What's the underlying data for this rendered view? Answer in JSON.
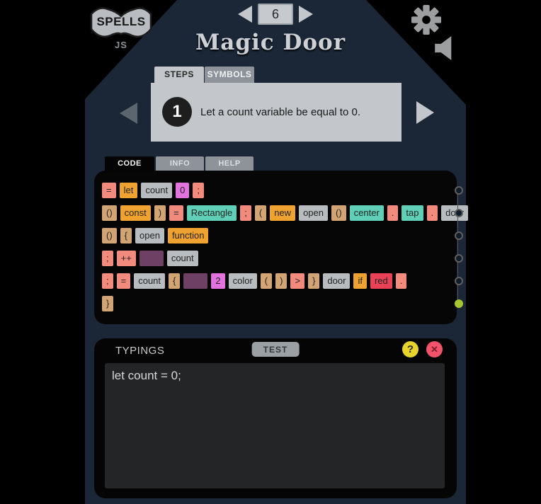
{
  "header": {
    "logo": {
      "title": "SPELLS",
      "subtitle": "JS"
    },
    "level_nav": {
      "number": "6"
    },
    "title": "Magic Door"
  },
  "steps": {
    "tabs": [
      {
        "label": "STEPS",
        "active": true
      },
      {
        "label": "SYMBOLS",
        "active": false
      }
    ],
    "current_step": {
      "number": "1",
      "text": "Let a count variable be equal to 0."
    }
  },
  "code_section": {
    "tabs": [
      {
        "label": "CODE",
        "active": true
      },
      {
        "label": "INFO",
        "active": false
      },
      {
        "label": "HELP",
        "active": false
      }
    ]
  },
  "code_panel": {
    "token_colors": {
      "salmon": "#f28a7d",
      "orange": "#efa22f",
      "gray": "#b9bcbe",
      "orchid": "#e273de",
      "tan": "#d2a473",
      "teal": "#5fd0b7",
      "purple": "#6e4063",
      "red": "#e94257"
    },
    "rows": [
      [
        {
          "text": "=",
          "type": "salmon"
        },
        {
          "text": "let",
          "type": "orange"
        },
        {
          "text": "count",
          "type": "gray"
        },
        {
          "text": "0",
          "type": "orchid"
        },
        {
          "text": ";",
          "type": "salmon"
        }
      ],
      [
        {
          "text": "()",
          "type": "tan"
        },
        {
          "text": "const",
          "type": "orange"
        },
        {
          "text": ")",
          "type": "tan"
        },
        {
          "text": "=",
          "type": "salmon"
        },
        {
          "text": "Rectangle",
          "type": "teal"
        },
        {
          "text": ";",
          "type": "salmon"
        },
        {
          "text": "(",
          "type": "tan"
        },
        {
          "text": "new",
          "type": "orange"
        },
        {
          "text": "open",
          "type": "gray"
        },
        {
          "text": "()",
          "type": "tan"
        },
        {
          "text": "center",
          "type": "teal"
        },
        {
          "text": ".",
          "type": "salmon"
        },
        {
          "text": "tap",
          "type": "teal"
        },
        {
          "text": ".",
          "type": "salmon"
        },
        {
          "text": "door",
          "type": "gray"
        }
      ],
      [
        {
          "text": "()",
          "type": "tan"
        },
        {
          "text": "{",
          "type": "tan"
        },
        {
          "text": "open",
          "type": "gray"
        },
        {
          "text": "function",
          "type": "orange"
        }
      ],
      [
        {
          "text": ";",
          "type": "salmon"
        },
        {
          "text": "++",
          "type": "salmon"
        },
        {
          "text": "",
          "type": "purple"
        },
        {
          "text": "count",
          "type": "gray"
        }
      ],
      [
        {
          "text": ";",
          "type": "salmon"
        },
        {
          "text": "=",
          "type": "salmon"
        },
        {
          "text": "count",
          "type": "gray"
        },
        {
          "text": "{",
          "type": "tan"
        },
        {
          "text": "",
          "type": "purple"
        },
        {
          "text": "2",
          "type": "orchid"
        },
        {
          "text": "color",
          "type": "gray"
        },
        {
          "text": "(",
          "type": "tan"
        },
        {
          "text": ")",
          "type": "tan"
        },
        {
          "text": ">",
          "type": "salmon"
        },
        {
          "text": "}",
          "type": "tan"
        },
        {
          "text": "door",
          "type": "gray"
        },
        {
          "text": "if",
          "type": "orange"
        },
        {
          "text": "red",
          "type": "red"
        },
        {
          "text": ".",
          "type": "salmon"
        }
      ],
      [
        {
          "text": "}",
          "type": "tan"
        }
      ]
    ],
    "row_markers": [
      "empty",
      "empty",
      "empty",
      "empty",
      "empty",
      "filled"
    ],
    "marker_active_color": "#a7c52f"
  },
  "typings": {
    "title": "TYPINGS",
    "test_label": "TEST",
    "help_icon": "?",
    "close_icon": "✕",
    "value": "let count = 0;"
  },
  "colors": {
    "body_background": "#1b2737",
    "panel_gray": "#c3c6ca",
    "inactive_tab": "#8e9399",
    "help_yellow": "#e8d22e",
    "close_red": "#f2536a"
  }
}
